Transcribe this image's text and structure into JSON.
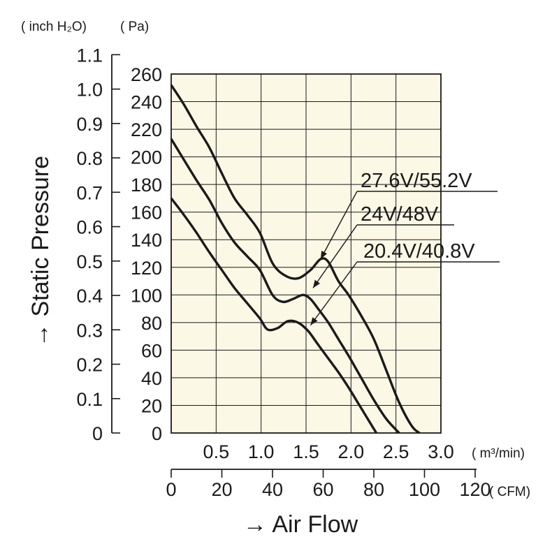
{
  "chart_data": {
    "type": "line",
    "units": {
      "left_outer": "( inch H₂O)",
      "left_inner": "( Pa)",
      "x_top": "( m³/min)",
      "x_bottom": "( CFM)"
    },
    "y_pa": {
      "min": 0,
      "max": 260,
      "ticks": [
        "0",
        "20",
        "40",
        "60",
        "80",
        "100",
        "120",
        "140",
        "160",
        "180",
        "200",
        "220",
        "240",
        "260"
      ]
    },
    "y_inch": {
      "ticks": [
        "0",
        "0.1",
        "0.2",
        "0.3",
        "0.4",
        "0.5",
        "0.6",
        "0.7",
        "0.8",
        "0.9",
        "1.0",
        "1.1"
      ]
    },
    "x_m3": {
      "ticks": [
        "0.5",
        "1.0",
        "1.5",
        "2.0",
        "2.5",
        "3.0"
      ]
    },
    "x_cfm": {
      "min": 0,
      "max": 120,
      "ticks": [
        "0",
        "20",
        "40",
        "60",
        "80",
        "100",
        "120"
      ]
    },
    "ylabel": "→ Static Pressure",
    "xlabel": "→ Air Flow",
    "grid": true,
    "background": "#fbf8e6",
    "line_color": "#1a1a1a",
    "series": [
      {
        "name": "27.6V/55.2V",
        "x": [
          0,
          5,
          10,
          15,
          20,
          25,
          30,
          35,
          40,
          45,
          50,
          55,
          59,
          62,
          66,
          70,
          75,
          80,
          85,
          90,
          95,
          98
        ],
        "y": [
          252,
          238,
          222,
          207,
          188,
          170,
          158,
          145,
          123,
          114,
          112,
          118,
          126,
          124,
          110,
          100,
          85,
          68,
          45,
          22,
          5,
          0
        ]
      },
      {
        "name": "24V/48V",
        "x": [
          0,
          5,
          10,
          15,
          20,
          25,
          30,
          35,
          40,
          44,
          48,
          52,
          55,
          58,
          62,
          66,
          70,
          75,
          80,
          85,
          90
        ],
        "y": [
          213,
          198,
          183,
          169,
          152,
          138,
          128,
          118,
          100,
          95,
          97,
          100,
          97,
          90,
          80,
          68,
          56,
          40,
          24,
          10,
          0
        ]
      },
      {
        "name": "20.4V/40.8V",
        "x": [
          0,
          5,
          10,
          15,
          20,
          25,
          30,
          35,
          38,
          42,
          46,
          50,
          54,
          58,
          62,
          66,
          70,
          75,
          80,
          81
        ],
        "y": [
          170,
          158,
          145,
          131,
          118,
          105,
          94,
          83,
          75,
          76,
          81,
          80,
          74,
          64,
          54,
          44,
          33,
          18,
          3,
          0
        ]
      }
    ],
    "annotations": [
      {
        "text": "27.6V/55.2V",
        "series": "27.6V/55.2V",
        "x": 59,
        "y": 124
      },
      {
        "text": "24V/48V",
        "series": "24V/48V",
        "x": 56,
        "y": 103
      },
      {
        "text": "20.4V/40.8V",
        "series": "20.4V/40.8V",
        "x": 55,
        "y": 76
      }
    ]
  }
}
